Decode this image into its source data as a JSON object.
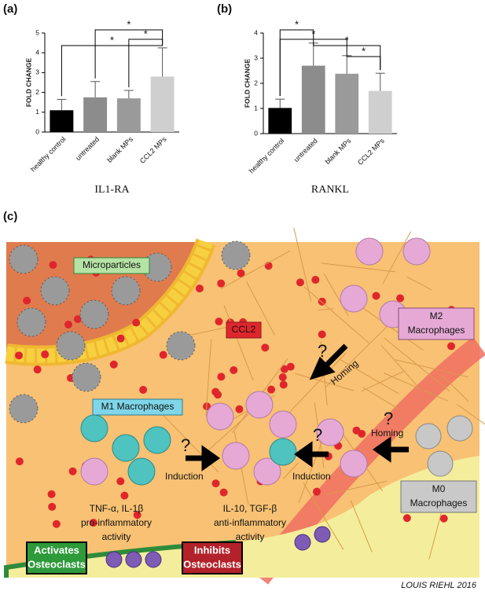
{
  "panels": [
    "(a)",
    "(b)",
    "(c)"
  ],
  "chart_data": [
    {
      "type": "bar",
      "xlabel": "IL1-RA",
      "ylabel": "FOLD CHANGE",
      "categories": [
        "healthy control",
        "untreated",
        "blank MPs",
        "CCL2 MPs"
      ],
      "values": [
        1.1,
        1.75,
        1.7,
        2.8
      ],
      "errors": [
        0.55,
        0.8,
        0.4,
        1.45
      ],
      "colors": [
        "#000000",
        "#8c8c8c",
        "#9a9a9a",
        "#cfcfcf"
      ],
      "ylim": [
        0,
        5
      ],
      "yticks": [
        0,
        1,
        2,
        3,
        4,
        5
      ],
      "annotations": [
        "*",
        "*",
        "*"
      ]
    },
    {
      "type": "bar",
      "xlabel": "RANKL",
      "ylabel": "FOLD CHANGE",
      "categories": [
        "healthy control",
        "untreated",
        "blank MPs",
        "CCL2 MPs"
      ],
      "values": [
        1.02,
        2.7,
        2.38,
        1.7
      ],
      "errors": [
        0.35,
        0.9,
        0.72,
        0.7
      ],
      "colors": [
        "#000000",
        "#8c8c8c",
        "#9a9a9a",
        "#cfcfcf"
      ],
      "ylim": [
        0,
        4
      ],
      "yticks": [
        0,
        1,
        2,
        3,
        4
      ],
      "annotations": [
        "*",
        "*",
        "*",
        "*"
      ]
    }
  ],
  "illustration": {
    "microparticles": "Microparticles",
    "ccl2": "CCL2",
    "m2": [
      "M2",
      "Macrophages"
    ],
    "m1": "M1 Macrophages",
    "m0": [
      "M0",
      "Macrophages"
    ],
    "homing": [
      "Homing",
      "Homing"
    ],
    "induction": [
      "Induction",
      "Induction"
    ],
    "question": [
      "?",
      "?",
      "?",
      "?"
    ],
    "pro": [
      "TNF-α, IL-1β",
      "pro-inflammatory",
      "activity"
    ],
    "anti": [
      "IL-10, TGF-β",
      "anti-inflammatory",
      "activity"
    ],
    "activates": [
      "Activates",
      "Osteoclasts"
    ],
    "inhibits": [
      "Inhibits",
      "Osteoclasts"
    ],
    "signature": "LOUIS RIEHL 2016"
  }
}
